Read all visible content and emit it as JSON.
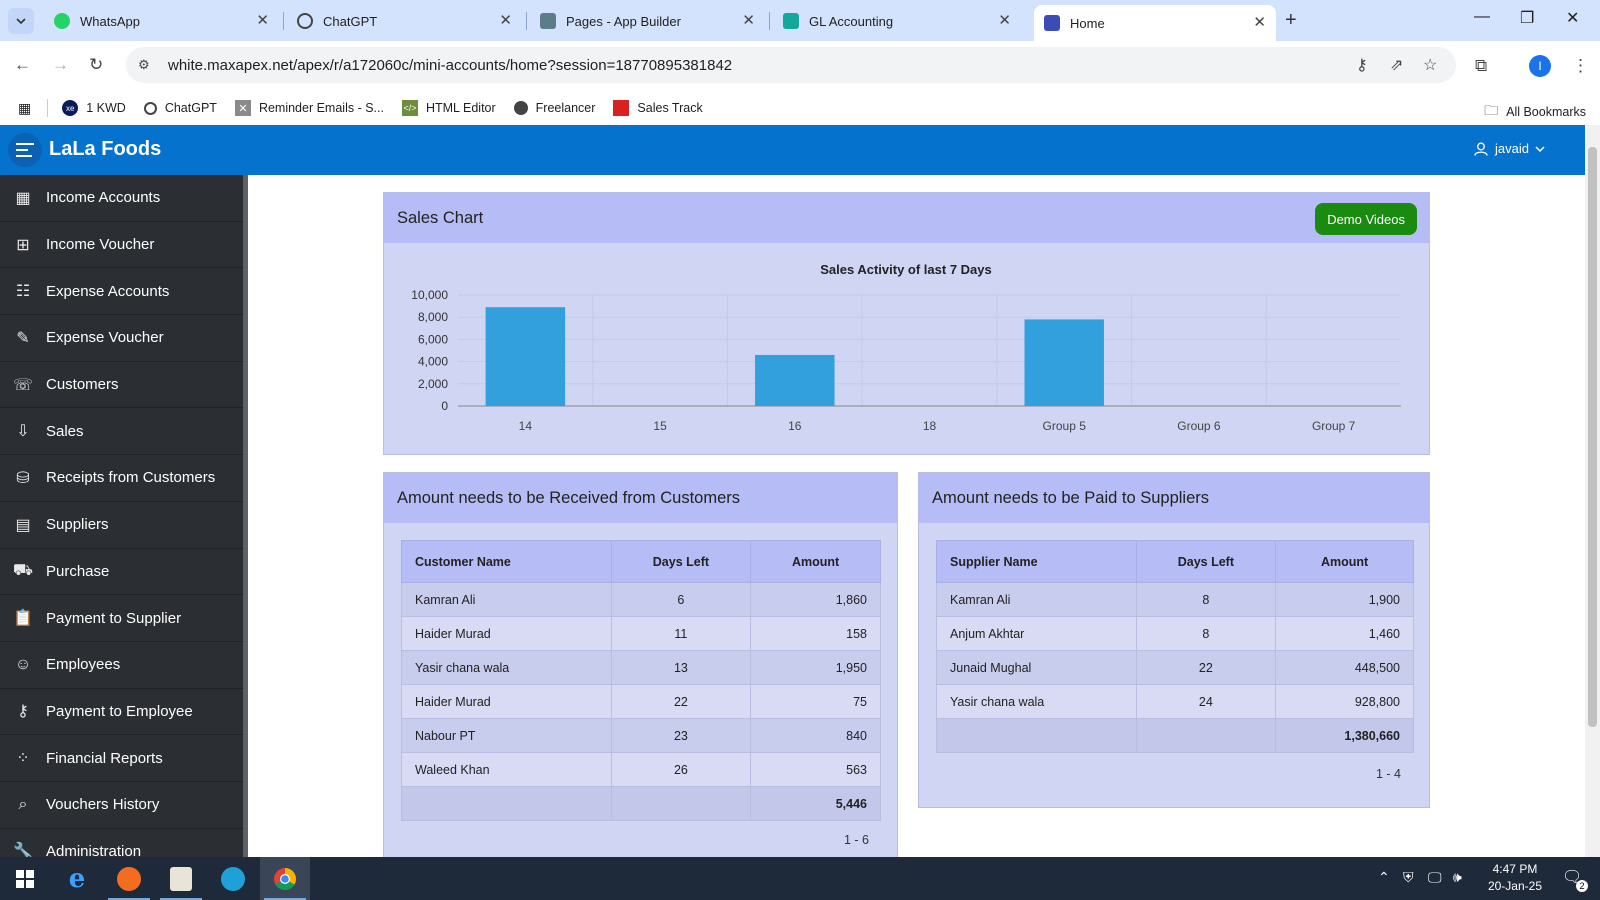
{
  "browser": {
    "tabs": [
      {
        "title": "WhatsApp",
        "icon": "whatsapp-icon",
        "color": "#25d366"
      },
      {
        "title": "ChatGPT",
        "icon": "chatgpt-icon",
        "color": "#444444"
      },
      {
        "title": "Pages - App Builder",
        "icon": "app-builder-icon",
        "color": "#5c7c8a"
      },
      {
        "title": "GL Accounting",
        "icon": "gl-accounting-icon",
        "color": "#13a89e"
      },
      {
        "title": "Home",
        "icon": "home-page-icon",
        "color": "#3b4cb8"
      }
    ],
    "url": "white.maxapex.net/apex/r/a172060c/mini-accounts/home?session=18770895381842",
    "profile_initial": "I",
    "bookmarks": [
      {
        "label": "1 KWD",
        "icon": "xe-icon"
      },
      {
        "label": "ChatGPT",
        "icon": "chatgpt-icon"
      },
      {
        "label": "Reminder Emails - S...",
        "icon": "reminder-icon"
      },
      {
        "label": "HTML Editor",
        "icon": "html-editor-icon"
      },
      {
        "label": "Freelancer",
        "icon": "freelancer-icon"
      },
      {
        "label": "Sales Track",
        "icon": "sales-track-icon"
      }
    ],
    "all_bookmarks": "All Bookmarks"
  },
  "app": {
    "title": "LaLa Foods",
    "user": "javaid",
    "accent": "#0572ce",
    "sidebar": [
      {
        "label": "Income Accounts",
        "icon": "calendar-grid-icon"
      },
      {
        "label": "Income Voucher",
        "icon": "calendar-plus-icon"
      },
      {
        "label": "Expense Accounts",
        "icon": "list-grid-icon"
      },
      {
        "label": "Expense Voucher",
        "icon": "calendar-edit-icon"
      },
      {
        "label": "Customers",
        "icon": "contacts-icon"
      },
      {
        "label": "Sales",
        "icon": "download-tray-icon"
      },
      {
        "label": "Receipts from Customers",
        "icon": "database-plus-icon"
      },
      {
        "label": "Suppliers",
        "icon": "id-card-icon"
      },
      {
        "label": "Purchase",
        "icon": "cart-icon"
      },
      {
        "label": "Payment to Supplier",
        "icon": "clipboard-icon"
      },
      {
        "label": "Employees",
        "icon": "smiley-icon"
      },
      {
        "label": "Payment to Employee",
        "icon": "user-key-icon"
      },
      {
        "label": "Financial Reports",
        "icon": "scatter-chart-icon"
      },
      {
        "label": "Vouchers History",
        "icon": "database-search-icon"
      },
      {
        "label": "Administration",
        "icon": "wrench-icon"
      }
    ]
  },
  "sales_region": {
    "title": "Sales Chart",
    "demo_button": "Demo Videos"
  },
  "chart_data": {
    "type": "bar",
    "title": "Sales Activity of last 7 Days",
    "categories": [
      "14",
      "15",
      "16",
      "18",
      "Group 5",
      "Group 6",
      "Group 7"
    ],
    "values": [
      8900,
      0,
      4600,
      0,
      7800,
      0,
      0
    ],
    "ylim": [
      0,
      10000
    ],
    "yticks": [
      "0",
      "2,000",
      "4,000",
      "6,000",
      "8,000",
      "10,000"
    ],
    "ytick_values": [
      0,
      2000,
      4000,
      6000,
      8000,
      10000
    ],
    "bar_color": "#32a0dc",
    "grid": true
  },
  "receivable": {
    "title": "Amount needs to be Received from Customers",
    "headers": [
      "Customer Name",
      "Days Left",
      "Amount"
    ],
    "rows": [
      [
        "Kamran Ali",
        "6",
        "1,860"
      ],
      [
        "Haider Murad",
        "11",
        "158"
      ],
      [
        "Yasir chana wala",
        "13",
        "1,950"
      ],
      [
        "Haider Murad",
        "22",
        "75"
      ],
      [
        "Nabour PT",
        "23",
        "840"
      ],
      [
        "Waleed Khan",
        "26",
        "563"
      ]
    ],
    "total": "5,446",
    "pagination": "1 - 6"
  },
  "payable": {
    "title": "Amount needs to be Paid to Suppliers",
    "headers": [
      "Supplier Name",
      "Days Left",
      "Amount"
    ],
    "rows": [
      [
        "Kamran Ali",
        "8",
        "1,900"
      ],
      [
        "Anjum Akhtar",
        "8",
        "1,460"
      ],
      [
        "Junaid Mughal",
        "22",
        "448,500"
      ],
      [
        "Yasir chana wala",
        "24",
        "928,800"
      ]
    ],
    "total": "1,380,660",
    "pagination": "1 - 4"
  },
  "taskbar": {
    "time": "4:47 PM",
    "date": "20-Jan-25",
    "notification_count": "2"
  }
}
